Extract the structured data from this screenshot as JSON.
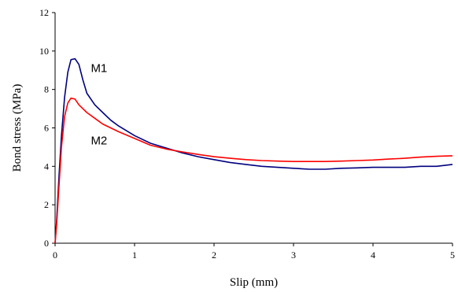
{
  "chart_data": {
    "type": "line",
    "xlabel": "Slip (mm)",
    "ylabel": "Bond stress (MPa)",
    "xlim": [
      0,
      5
    ],
    "ylim": [
      0,
      12
    ],
    "x_ticks": [
      "0",
      "1",
      "2",
      "3",
      "4",
      "5"
    ],
    "y_ticks": [
      "0",
      "2",
      "4",
      "6",
      "8",
      "10",
      "12"
    ],
    "grid": false,
    "legend": "none",
    "series": [
      {
        "name": "M1",
        "color": "#00007f",
        "points": [
          [
            0,
            0
          ],
          [
            0.02,
            1.2
          ],
          [
            0.05,
            3.5
          ],
          [
            0.08,
            5.6
          ],
          [
            0.12,
            7.6
          ],
          [
            0.16,
            8.9
          ],
          [
            0.2,
            9.55
          ],
          [
            0.25,
            9.6
          ],
          [
            0.3,
            9.3
          ],
          [
            0.35,
            8.5
          ],
          [
            0.4,
            7.8
          ],
          [
            0.5,
            7.2
          ],
          [
            0.6,
            6.8
          ],
          [
            0.7,
            6.4
          ],
          [
            0.8,
            6.1
          ],
          [
            0.9,
            5.85
          ],
          [
            1.0,
            5.6
          ],
          [
            1.2,
            5.2
          ],
          [
            1.4,
            4.95
          ],
          [
            1.6,
            4.7
          ],
          [
            1.8,
            4.5
          ],
          [
            2.0,
            4.35
          ],
          [
            2.2,
            4.2
          ],
          [
            2.4,
            4.1
          ],
          [
            2.6,
            4.0
          ],
          [
            2.8,
            3.95
          ],
          [
            3.0,
            3.9
          ],
          [
            3.2,
            3.85
          ],
          [
            3.4,
            3.85
          ],
          [
            3.6,
            3.9
          ],
          [
            3.8,
            3.92
          ],
          [
            4.0,
            3.95
          ],
          [
            4.2,
            3.95
          ],
          [
            4.4,
            3.95
          ],
          [
            4.6,
            4.0
          ],
          [
            4.8,
            4.0
          ],
          [
            5.0,
            4.1
          ]
        ]
      },
      {
        "name": "M2",
        "color": "#ff0000",
        "points": [
          [
            0,
            0
          ],
          [
            0.02,
            1.0
          ],
          [
            0.05,
            3.0
          ],
          [
            0.08,
            5.0
          ],
          [
            0.12,
            6.6
          ],
          [
            0.16,
            7.3
          ],
          [
            0.2,
            7.55
          ],
          [
            0.25,
            7.5
          ],
          [
            0.3,
            7.2
          ],
          [
            0.4,
            6.8
          ],
          [
            0.5,
            6.5
          ],
          [
            0.6,
            6.2
          ],
          [
            0.8,
            5.8
          ],
          [
            1.0,
            5.45
          ],
          [
            1.2,
            5.1
          ],
          [
            1.4,
            4.9
          ],
          [
            1.6,
            4.75
          ],
          [
            1.8,
            4.62
          ],
          [
            2.0,
            4.5
          ],
          [
            2.2,
            4.42
          ],
          [
            2.4,
            4.35
          ],
          [
            2.6,
            4.3
          ],
          [
            2.8,
            4.27
          ],
          [
            3.0,
            4.25
          ],
          [
            3.2,
            4.25
          ],
          [
            3.4,
            4.25
          ],
          [
            3.6,
            4.27
          ],
          [
            3.8,
            4.3
          ],
          [
            4.0,
            4.33
          ],
          [
            4.2,
            4.38
          ],
          [
            4.4,
            4.42
          ],
          [
            4.6,
            4.48
          ],
          [
            4.8,
            4.52
          ],
          [
            5.0,
            4.55
          ]
        ]
      }
    ],
    "annotations": [
      {
        "text": "M1",
        "x": 0.45,
        "y": 8.9
      },
      {
        "text": "M2",
        "x": 0.45,
        "y": 5.15
      }
    ]
  }
}
